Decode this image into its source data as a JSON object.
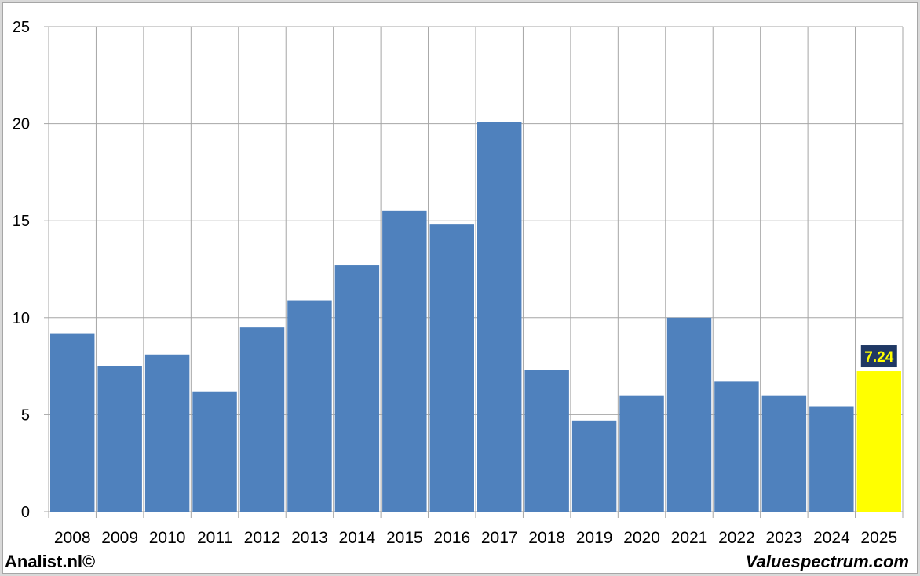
{
  "chart_data": {
    "type": "bar",
    "categories": [
      "2008",
      "2009",
      "2010",
      "2011",
      "2012",
      "2013",
      "2014",
      "2015",
      "2016",
      "2017",
      "2018",
      "2019",
      "2020",
      "2021",
      "2022",
      "2023",
      "2024",
      "2025"
    ],
    "values": [
      9.2,
      7.5,
      8.1,
      6.2,
      9.5,
      10.9,
      12.7,
      15.5,
      14.8,
      20.1,
      7.3,
      4.7,
      6.0,
      10.0,
      6.7,
      6.0,
      5.4,
      7.24
    ],
    "highlight_index": 17,
    "highlight_label": "7.24",
    "ylim": [
      0,
      25
    ],
    "yticks": [
      0,
      5,
      10,
      15,
      20,
      25
    ],
    "grid": true,
    "colors": {
      "bar": "#4f81bd",
      "highlight": "#ffff00",
      "label_bg": "#1f3864",
      "label_text": "#ffff00",
      "grid": "#a6a6a6"
    }
  },
  "footer": {
    "source": "Analist.nl©",
    "watermark": "Valuespectrum.com"
  }
}
